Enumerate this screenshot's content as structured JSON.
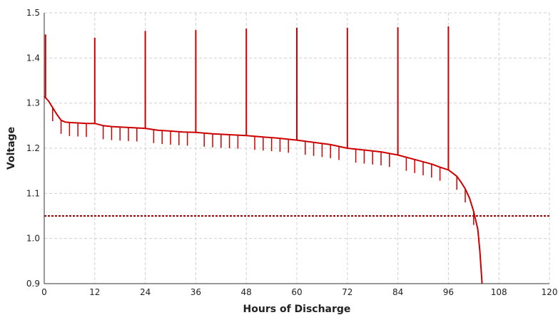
{
  "chart_data": {
    "type": "line",
    "title": "",
    "xlabel": "Hours of Discharge",
    "ylabel": "Voltage",
    "xlim": [
      0,
      120
    ],
    "ylim": [
      0.9,
      1.5
    ],
    "xticks": [
      0,
      12,
      24,
      36,
      48,
      60,
      72,
      84,
      96,
      108,
      120
    ],
    "yticks": [
      0.9,
      1.0,
      1.1,
      1.2,
      1.3,
      1.4,
      1.5
    ],
    "xtick_labels": [
      "0",
      "12",
      "24",
      "36",
      "48",
      "60",
      "72",
      "84",
      "96",
      "108",
      "120"
    ],
    "ytick_labels": [
      "0.9",
      "1.0",
      "1.1",
      "1.2",
      "1.3",
      "1.4",
      "1.5"
    ],
    "grid": true,
    "legend": "none",
    "colors": {
      "series": "#cc0000",
      "cutoff": "#990000",
      "grid": "#d0d0d0"
    },
    "series": [
      {
        "x": [
          0,
          1,
          2,
          3,
          4,
          5,
          6,
          8,
          10,
          12,
          14,
          16,
          18,
          20,
          22,
          24,
          27,
          30,
          33,
          36,
          40,
          44,
          48,
          52,
          56,
          60,
          64,
          68,
          72,
          76,
          80,
          84,
          88,
          92,
          94,
          96,
          97,
          98,
          99,
          100,
          101,
          102,
          103,
          103.5,
          104
        ],
        "y": [
          1.315,
          1.305,
          1.29,
          1.275,
          1.262,
          1.258,
          1.257,
          1.256,
          1.255,
          1.255,
          1.25,
          1.248,
          1.247,
          1.246,
          1.245,
          1.244,
          1.24,
          1.238,
          1.236,
          1.235,
          1.232,
          1.23,
          1.228,
          1.225,
          1.222,
          1.218,
          1.213,
          1.208,
          1.2,
          1.196,
          1.192,
          1.185,
          1.175,
          1.165,
          1.158,
          1.152,
          1.145,
          1.138,
          1.125,
          1.11,
          1.09,
          1.06,
          1.02,
          0.97,
          0.9
        ]
      }
    ],
    "spikes_up": [
      {
        "x": 0.3,
        "y": 1.452
      },
      {
        "x": 12,
        "y": 1.445
      },
      {
        "x": 24,
        "y": 1.46
      },
      {
        "x": 36,
        "y": 1.462
      },
      {
        "x": 48,
        "y": 1.465
      },
      {
        "x": 60,
        "y": 1.467
      },
      {
        "x": 72,
        "y": 1.467
      },
      {
        "x": 84,
        "y": 1.468
      },
      {
        "x": 96,
        "y": 1.47
      }
    ],
    "dips_x": [
      2,
      4,
      6,
      8,
      10,
      14,
      16,
      18,
      20,
      22,
      26,
      28,
      30,
      32,
      34,
      38,
      40,
      42,
      44,
      46,
      50,
      52,
      54,
      56,
      58,
      62,
      64,
      66,
      68,
      70,
      74,
      76,
      78,
      80,
      82,
      86,
      88,
      90,
      92,
      94,
      98,
      100,
      102
    ],
    "dip_depth": 0.03,
    "cutoff_line": {
      "y": 1.05,
      "style": "dotted"
    }
  }
}
